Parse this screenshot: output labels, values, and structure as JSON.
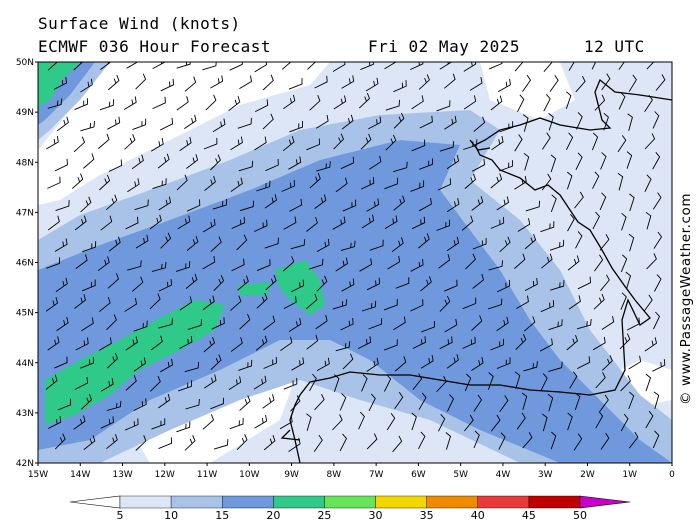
{
  "header": {
    "title": "Surface Wind (knots)",
    "model": "ECMWF 036 Hour Forecast",
    "date": "Fri 02 May 2025",
    "time": "12 UTC"
  },
  "watermark": "© www.PassageWeather.com",
  "map": {
    "lon_ticks": [
      "15W",
      "14W",
      "13W",
      "12W",
      "11W",
      "10W",
      "9W",
      "8W",
      "7W",
      "6W",
      "5W",
      "4W",
      "3W",
      "2W",
      "1W",
      "0"
    ],
    "lat_ticks": [
      "50N",
      "49N",
      "48N",
      "47N",
      "46N",
      "45N",
      "44N",
      "43N",
      "42N"
    ],
    "lon_range": [
      -15,
      0
    ],
    "lat_range": [
      42,
      50
    ]
  },
  "legend": {
    "ticks": [
      "5",
      "10",
      "15",
      "20",
      "25",
      "30",
      "35",
      "40",
      "45",
      "50"
    ],
    "colors": [
      "#ffffff",
      "#dce6f6",
      "#a9c3e8",
      "#6f99dc",
      "#2fc98a",
      "#66e45a",
      "#f2d800",
      "#f08a00",
      "#e83a3a",
      "#c00000",
      "#c800c8"
    ]
  },
  "colors": {
    "c0": "#ffffff",
    "c5": "#dce6f6",
    "c10": "#a9c3e8",
    "c15": "#6f99dc",
    "c20": "#2fc98a",
    "coast": "#000000"
  }
}
